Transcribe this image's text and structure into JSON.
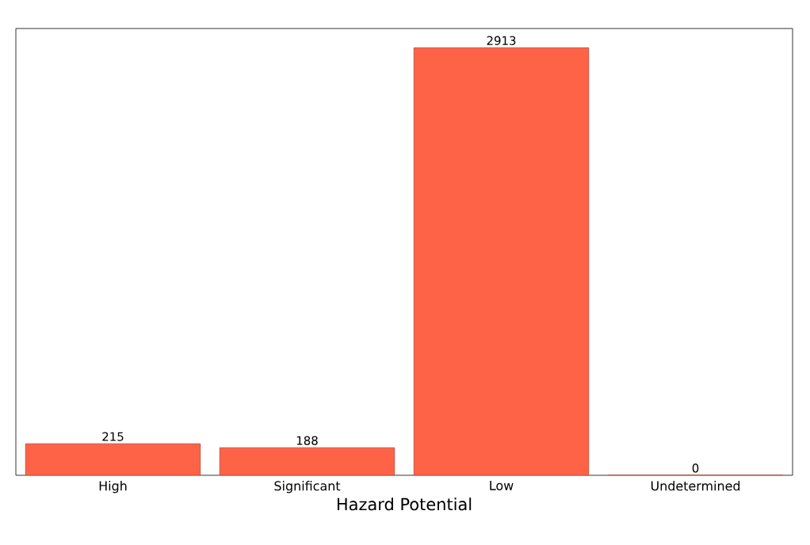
{
  "chart_data": {
    "type": "bar",
    "xlabel": "Hazard Potential",
    "categories": [
      "High",
      "Significant",
      "Low",
      "Undetermined"
    ],
    "values": [
      215,
      188,
      2913,
      0
    ],
    "color": "#ff6347",
    "data_labels": true,
    "tick_labels": "x"
  }
}
